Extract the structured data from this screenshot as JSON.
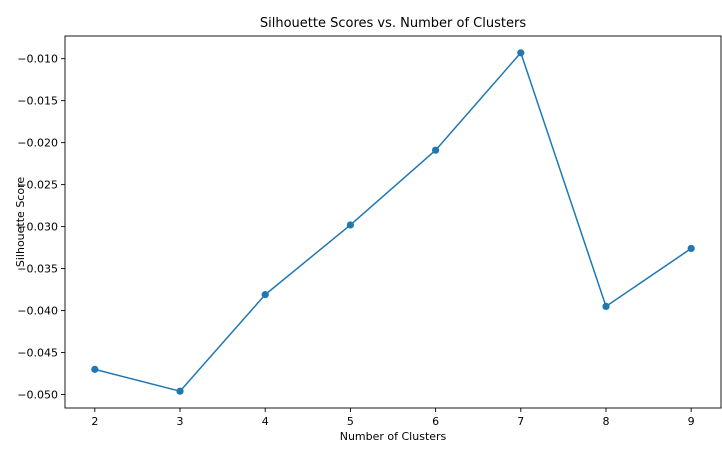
{
  "chart_data": {
    "type": "line",
    "title": "Silhouette Scores vs. Number of Clusters",
    "xlabel": "Number of Clusters",
    "ylabel": "Silhouette Score",
    "x": [
      2,
      3,
      4,
      5,
      6,
      7,
      8,
      9
    ],
    "series": [
      {
        "values": [
          -0.047,
          -0.0496,
          -0.0381,
          -0.0298,
          -0.0209,
          -0.0093,
          -0.0395,
          -0.0326
        ],
        "color": "#1f77b4",
        "marker": "circle"
      }
    ],
    "xlim": [
      1.65,
      9.35
    ],
    "ylim": [
      -0.0516,
      -0.0073
    ],
    "xticks": [
      2,
      3,
      4,
      5,
      6,
      7,
      8,
      9
    ],
    "xtick_labels": [
      "2",
      "3",
      "4",
      "5",
      "6",
      "7",
      "8",
      "9"
    ],
    "yticks": [
      -0.05,
      -0.045,
      -0.04,
      -0.035,
      -0.03,
      -0.025,
      -0.02,
      -0.015,
      -0.01
    ],
    "ytick_labels": [
      "−0.050",
      "−0.045",
      "−0.040",
      "−0.035",
      "−0.030",
      "−0.025",
      "−0.020",
      "−0.015",
      "−0.010"
    ],
    "grid": false,
    "legend": "none"
  }
}
